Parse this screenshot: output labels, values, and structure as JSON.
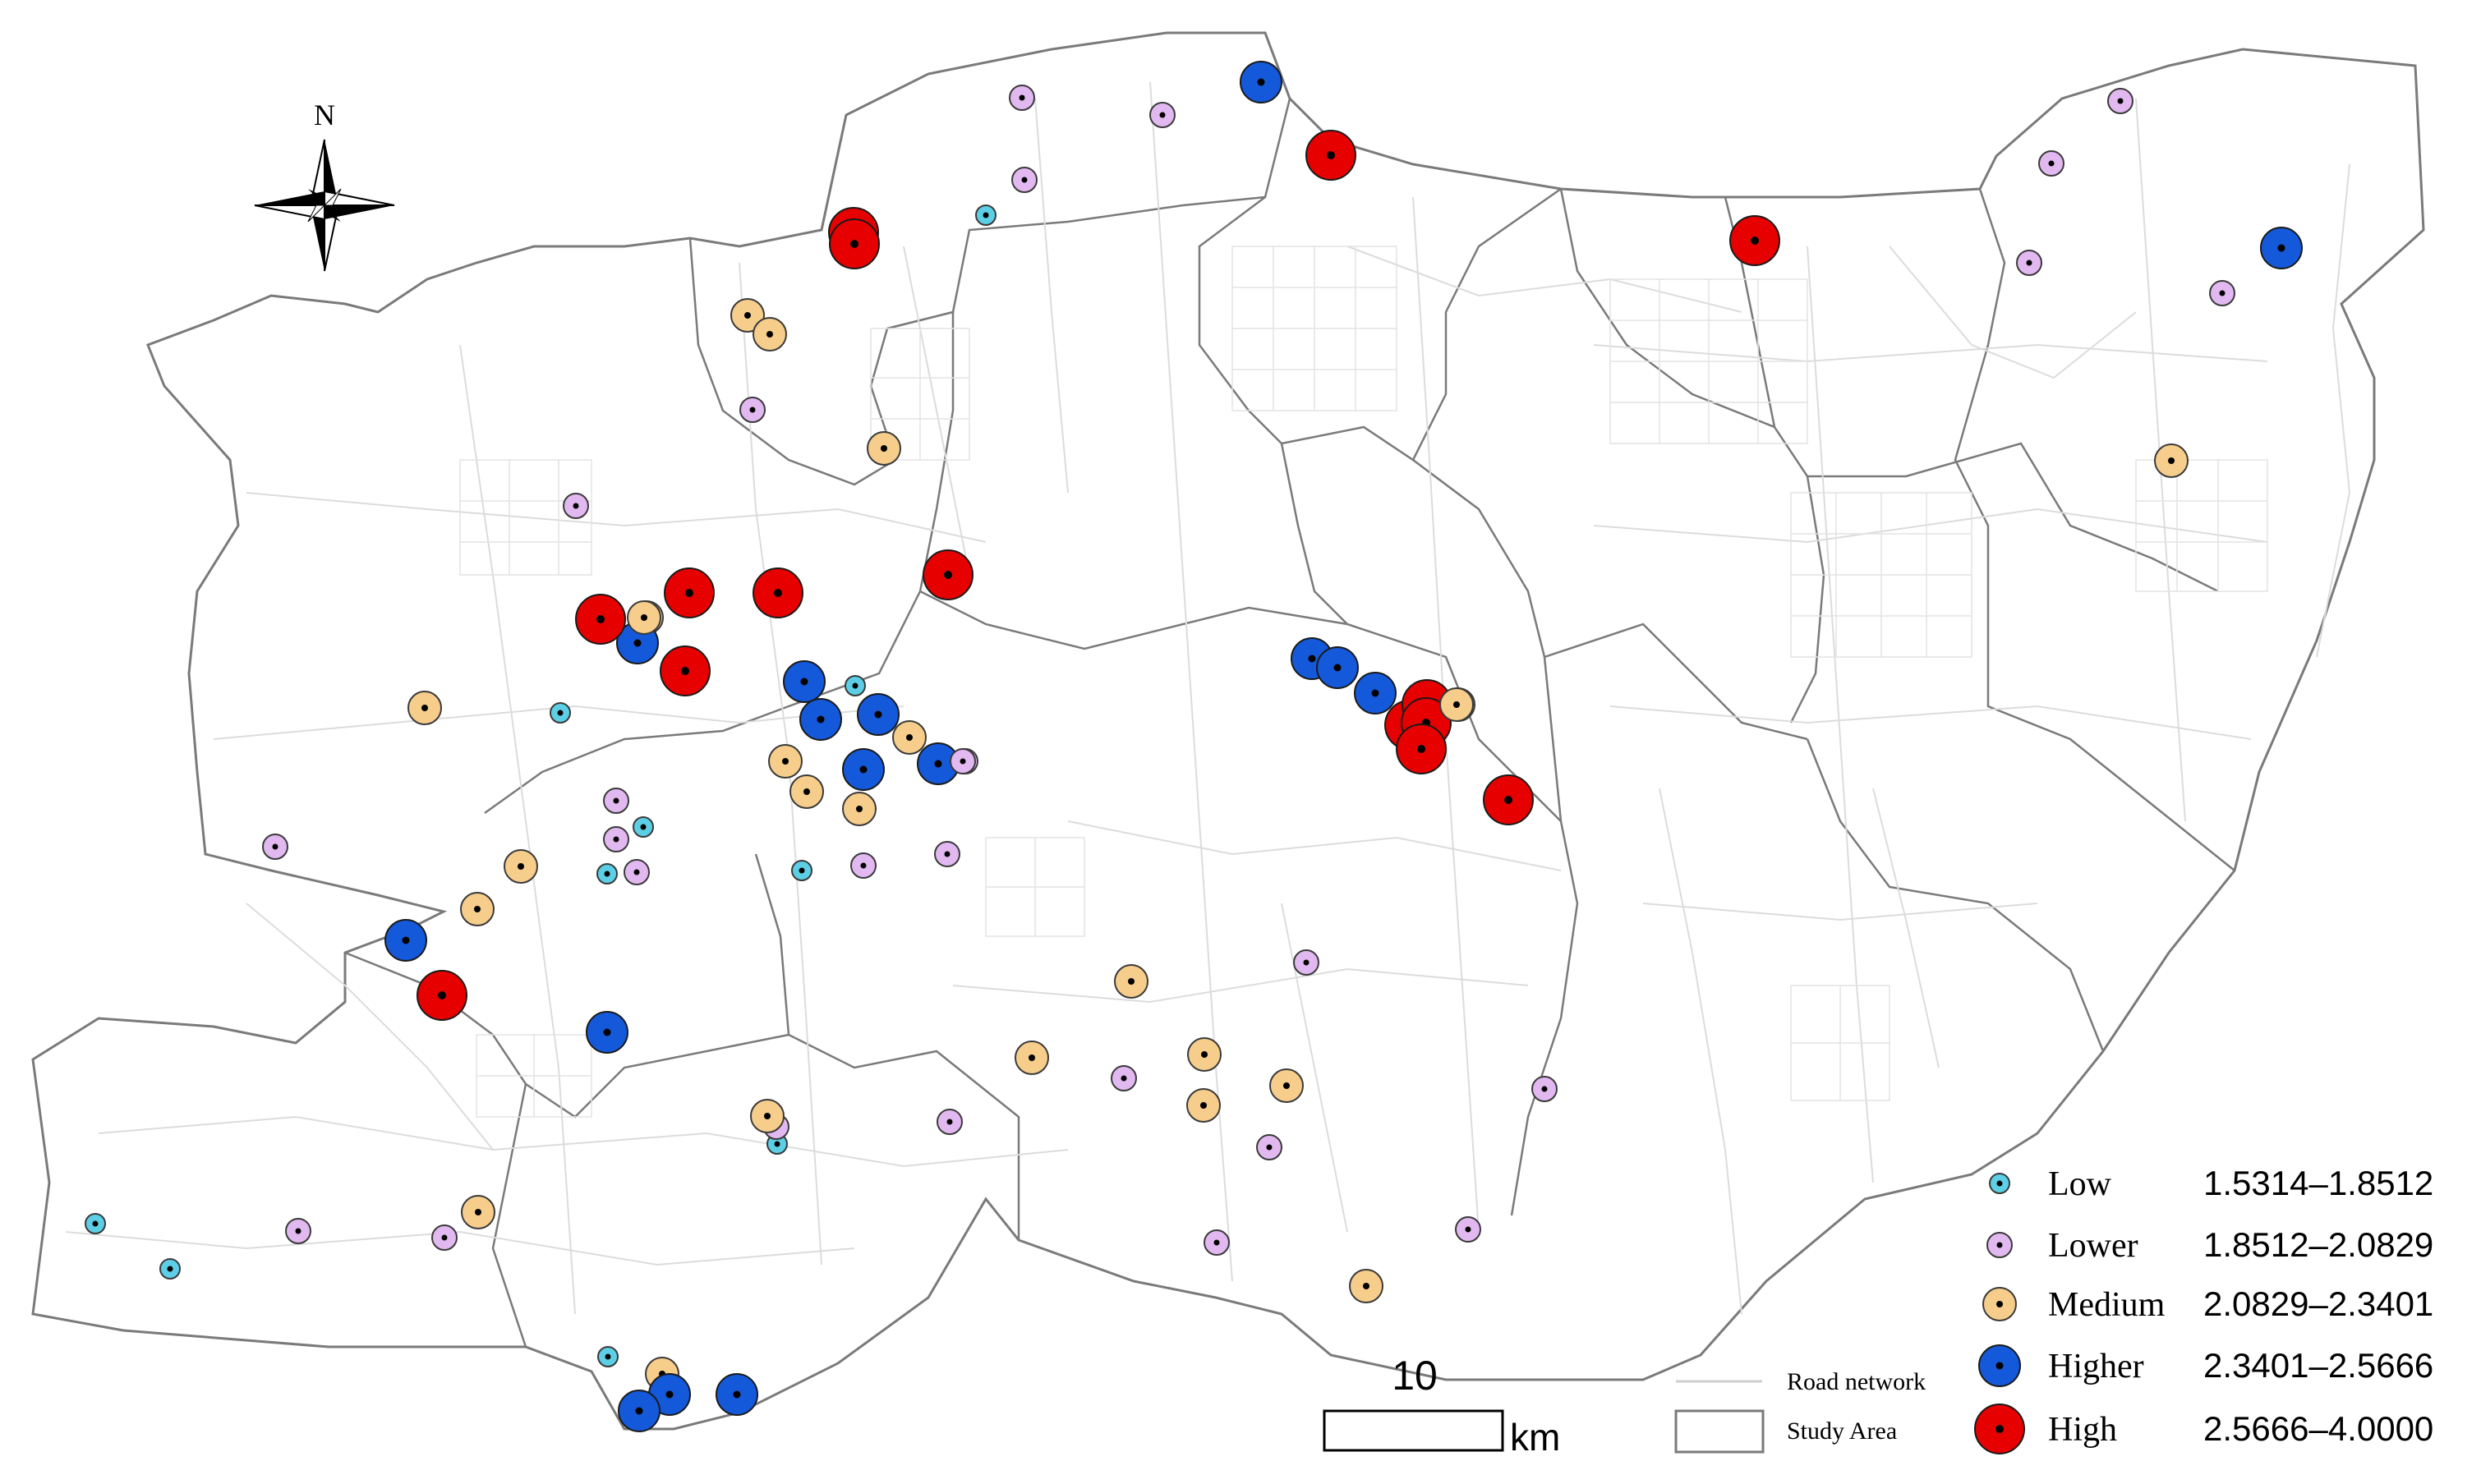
{
  "north_label": "N",
  "legend": {
    "classes": [
      {
        "key": "low",
        "label": "Low",
        "range": "1.5314–1.8512",
        "color": "#5ccfe6"
      },
      {
        "key": "lower",
        "label": "Lower",
        "range": "1.8512–2.0829",
        "color": "#e2b8f0"
      },
      {
        "key": "medium",
        "label": "Medium",
        "range": "2.0829–2.3401",
        "color": "#f6cd8b"
      },
      {
        "key": "higher",
        "label": "Higher",
        "range": "2.3401–2.5666",
        "color": "#1459d9"
      },
      {
        "key": "high",
        "label": "High",
        "range": "2.5666–4.0000",
        "color": "#e60000"
      }
    ],
    "road_network_label": "Road network",
    "study_area_label": "Study Area"
  },
  "scale_bar": {
    "value": "10",
    "unit": "km"
  },
  "colors": {
    "boundary": "#7a7a7a",
    "roads": "#dcdcdc",
    "point_outline": "#3a3a3a",
    "center_dot": "#000000"
  }
}
